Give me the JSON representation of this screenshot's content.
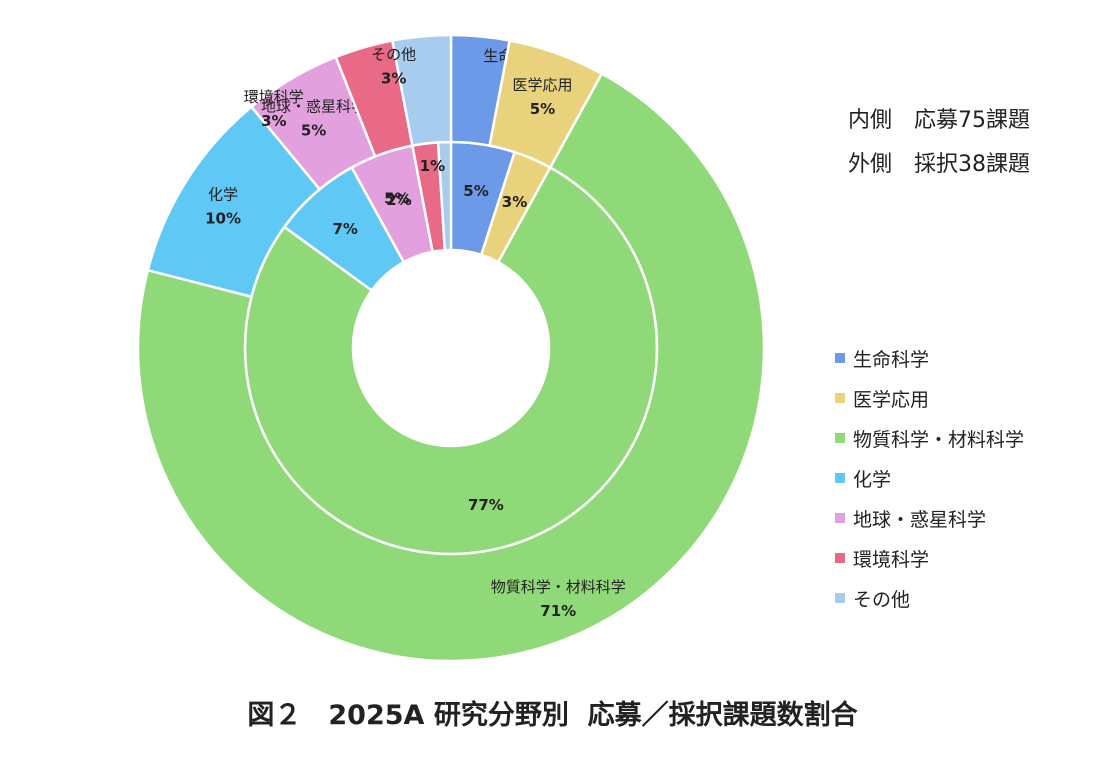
{
  "notes": {
    "inner": "内側　応募75課題",
    "outer": "外側　採択38課題"
  },
  "caption": "図２　2025A 研究分野別  応募／採択課題数割合",
  "chart_data": {
    "type": "pie",
    "subtype": "nested-donut",
    "legend_position": "right",
    "categories": [
      "生命科学",
      "医学応用",
      "物質科学・材料科学",
      "化学",
      "地球・惑星科学",
      "環境科学",
      "その他"
    ],
    "colors": [
      "#6c9ae8",
      "#e8d27c",
      "#8fd978",
      "#5fc8f5",
      "#e3a0de",
      "#e86a86",
      "#a8cced"
    ],
    "series": [
      {
        "ring": "inner",
        "values": [
          5,
          3,
          77,
          7,
          5,
          2,
          1
        ],
        "labels": [
          "5%",
          "3%",
          "77%",
          "7%",
          "5%",
          "2%",
          "1%"
        ]
      },
      {
        "ring": "outer",
        "values": [
          3,
          5,
          71,
          10,
          5,
          3,
          3
        ],
        "labels": [
          "3%",
          "5%",
          "71%",
          "10%",
          "5%",
          "3%",
          "3%"
        ]
      }
    ]
  }
}
